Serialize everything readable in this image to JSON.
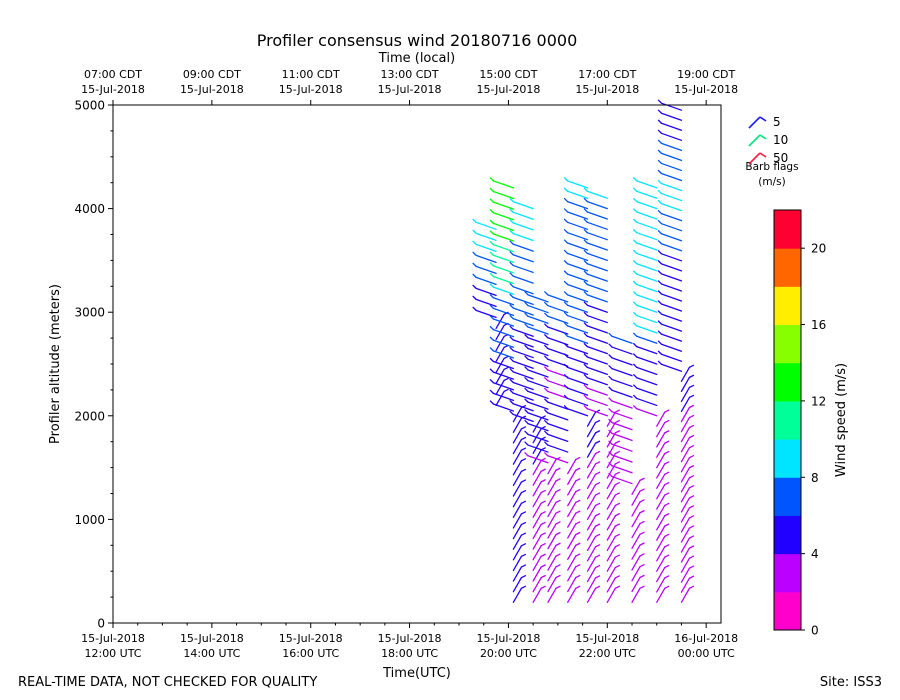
{
  "chart_data": {
    "type": "wind-barb-profile",
    "title": "Profiler consensus wind 20180716 0000",
    "xlabel": "Time(UTC)",
    "xlabel_top": "Time (local)",
    "ylabel": "Profiler altitude (meters)",
    "xlim_utc_hours": [
      12,
      24.3
    ],
    "ylim": [
      0,
      5000
    ],
    "y_ticks": [
      0,
      1000,
      2000,
      3000,
      4000,
      5000
    ],
    "x_ticks_bottom": [
      {
        "hour": 12,
        "date": "15-Jul-2018",
        "time": "12:00 UTC"
      },
      {
        "hour": 14,
        "date": "15-Jul-2018",
        "time": "14:00 UTC"
      },
      {
        "hour": 16,
        "date": "15-Jul-2018",
        "time": "16:00 UTC"
      },
      {
        "hour": 18,
        "date": "15-Jul-2018",
        "time": "18:00 UTC"
      },
      {
        "hour": 20,
        "date": "15-Jul-2018",
        "time": "20:00 UTC"
      },
      {
        "hour": 22,
        "date": "15-Jul-2018",
        "time": "22:00 UTC"
      },
      {
        "hour": 24,
        "date": "16-Jul-2018",
        "time": "00:00 UTC"
      }
    ],
    "x_ticks_top": [
      {
        "hour": 12,
        "time": "07:00 CDT",
        "date": "15-Jul-2018"
      },
      {
        "hour": 14,
        "time": "09:00 CDT",
        "date": "15-Jul-2018"
      },
      {
        "hour": 16,
        "time": "11:00 CDT",
        "date": "15-Jul-2018"
      },
      {
        "hour": 18,
        "time": "13:00 CDT",
        "date": "15-Jul-2018"
      },
      {
        "hour": 20,
        "time": "15:00 CDT",
        "date": "15-Jul-2018"
      },
      {
        "hour": 22,
        "time": "17:00 CDT",
        "date": "15-Jul-2018"
      },
      {
        "hour": 24,
        "time": "19:00 CDT",
        "date": "15-Jul-2018"
      }
    ],
    "barb_legend": {
      "items": [
        {
          "label": "5",
          "color": "#1a1aff"
        },
        {
          "label": "10",
          "color": "#00e67a"
        },
        {
          "label": "50",
          "color": "#ff1a3c"
        }
      ],
      "title_line1": "Barb flags",
      "title_line2": "(m/s)"
    },
    "colorbar": {
      "label": "Wind speed (m/s)",
      "min": 0,
      "max": 22,
      "step": 2,
      "ticks": [
        0,
        4,
        8,
        12,
        16,
        20
      ],
      "colors": [
        "#ff00cc",
        "#bb00ff",
        "#2200ff",
        "#0055ff",
        "#00e5ff",
        "#00ff99",
        "#00ff00",
        "#88ff00",
        "#ffee00",
        "#ff6600",
        "#ff0033"
      ]
    },
    "profiles": [
      {
        "hour": 19.75,
        "bottom": 2100,
        "top": 3800,
        "speeds": [
          5,
          5,
          4,
          5,
          5,
          5,
          5,
          4,
          5,
          5,
          5,
          6,
          6,
          7,
          8,
          8,
          9
        ]
      },
      {
        "hour": 20.1,
        "bottom": 200,
        "top": 4200,
        "speeds": [
          4,
          4,
          4,
          4,
          4,
          4,
          4,
          4,
          4,
          4,
          4,
          4,
          4,
          5,
          5,
          4,
          4,
          5,
          5,
          5,
          5,
          5,
          5,
          6,
          6,
          6,
          6,
          7,
          7,
          9,
          10,
          11,
          11,
          11,
          12,
          12,
          12,
          12,
          13,
          13
        ]
      },
      {
        "hour": 20.5,
        "bottom": 200,
        "top": 4000,
        "speeds": [
          3,
          3,
          3,
          3,
          3,
          3,
          3,
          3,
          3,
          3,
          3,
          3,
          3,
          4,
          4,
          4,
          4,
          4,
          4,
          4,
          4,
          5,
          5,
          5,
          5,
          5,
          6,
          6,
          6,
          6,
          6,
          6,
          7,
          7,
          8,
          8,
          9,
          9
        ]
      },
      {
        "hour": 20.8,
        "bottom": 200,
        "top": 3100,
        "speeds": [
          2,
          2,
          3,
          2,
          3,
          3,
          2,
          3,
          3,
          3,
          3,
          3,
          3,
          3,
          4,
          4,
          4,
          4,
          4,
          5,
          5,
          5,
          5,
          5,
          5,
          6,
          6,
          6,
          6
        ]
      },
      {
        "hour": 21.2,
        "bottom": 200,
        "top": 3100,
        "speeds": [
          2,
          2,
          3,
          2,
          3,
          3,
          2,
          3,
          3,
          3,
          2,
          2,
          3,
          3,
          4,
          4,
          4,
          4,
          4,
          2,
          2,
          3,
          4,
          5,
          5,
          5,
          6,
          6,
          6
        ]
      },
      {
        "hour": 21.6,
        "bottom": 200,
        "top": 4200,
        "speeds": [
          3,
          3,
          3,
          3,
          2,
          3,
          3,
          3,
          3,
          3,
          3,
          3,
          3,
          3,
          4,
          4,
          4,
          4,
          4,
          5,
          5,
          5,
          5,
          5,
          5,
          6,
          6,
          6,
          6,
          6,
          6,
          6,
          6,
          6,
          6,
          7,
          7,
          7,
          7,
          8,
          8
        ]
      },
      {
        "hour": 22.0,
        "bottom": 200,
        "top": 4100,
        "speeds": [
          3,
          3,
          3,
          3,
          3,
          3,
          3,
          3,
          3,
          3,
          3,
          3,
          3,
          3,
          3,
          3,
          3,
          3,
          3,
          3,
          3,
          4,
          4,
          4,
          4,
          5,
          5,
          5,
          5,
          6,
          6,
          6,
          6,
          6,
          7,
          7,
          7,
          7,
          7,
          8
        ]
      },
      {
        "hour": 22.5,
        "bottom": 200,
        "top": 2700,
        "speeds": [
          3,
          3,
          3,
          3,
          3,
          3,
          3,
          3,
          3,
          3,
          3,
          3,
          3,
          2,
          2,
          2,
          2,
          3,
          3,
          4,
          4,
          5,
          5,
          5,
          6
        ]
      },
      {
        "hour": 23.0,
        "bottom": 200,
        "top": 4200,
        "speeds": [
          3,
          3,
          3,
          3,
          3,
          3,
          3,
          3,
          3,
          3,
          3,
          3,
          3,
          2,
          2,
          2,
          3,
          3,
          3,
          4,
          4,
          4,
          4,
          5,
          5,
          6,
          8,
          8,
          8,
          8,
          8,
          8,
          8,
          8,
          9,
          9,
          8,
          9,
          9,
          9,
          9
        ]
      },
      {
        "hour": 23.5,
        "bottom": 200,
        "top": 4950,
        "speeds": [
          3,
          3,
          3,
          3,
          3,
          3,
          3,
          3,
          3,
          3,
          3,
          3,
          3,
          2,
          2,
          2,
          2,
          3,
          3,
          4,
          4,
          4,
          5,
          5,
          5,
          5,
          4,
          4,
          4,
          5,
          5,
          5,
          5,
          5,
          5,
          6,
          6,
          6,
          7,
          8,
          8,
          8,
          7,
          6,
          6,
          6,
          5,
          5,
          5,
          4
        ]
      }
    ]
  },
  "footer": {
    "disclaimer": "REAL-TIME DATA, NOT CHECKED FOR QUALITY",
    "site": "Site: ISS3"
  }
}
